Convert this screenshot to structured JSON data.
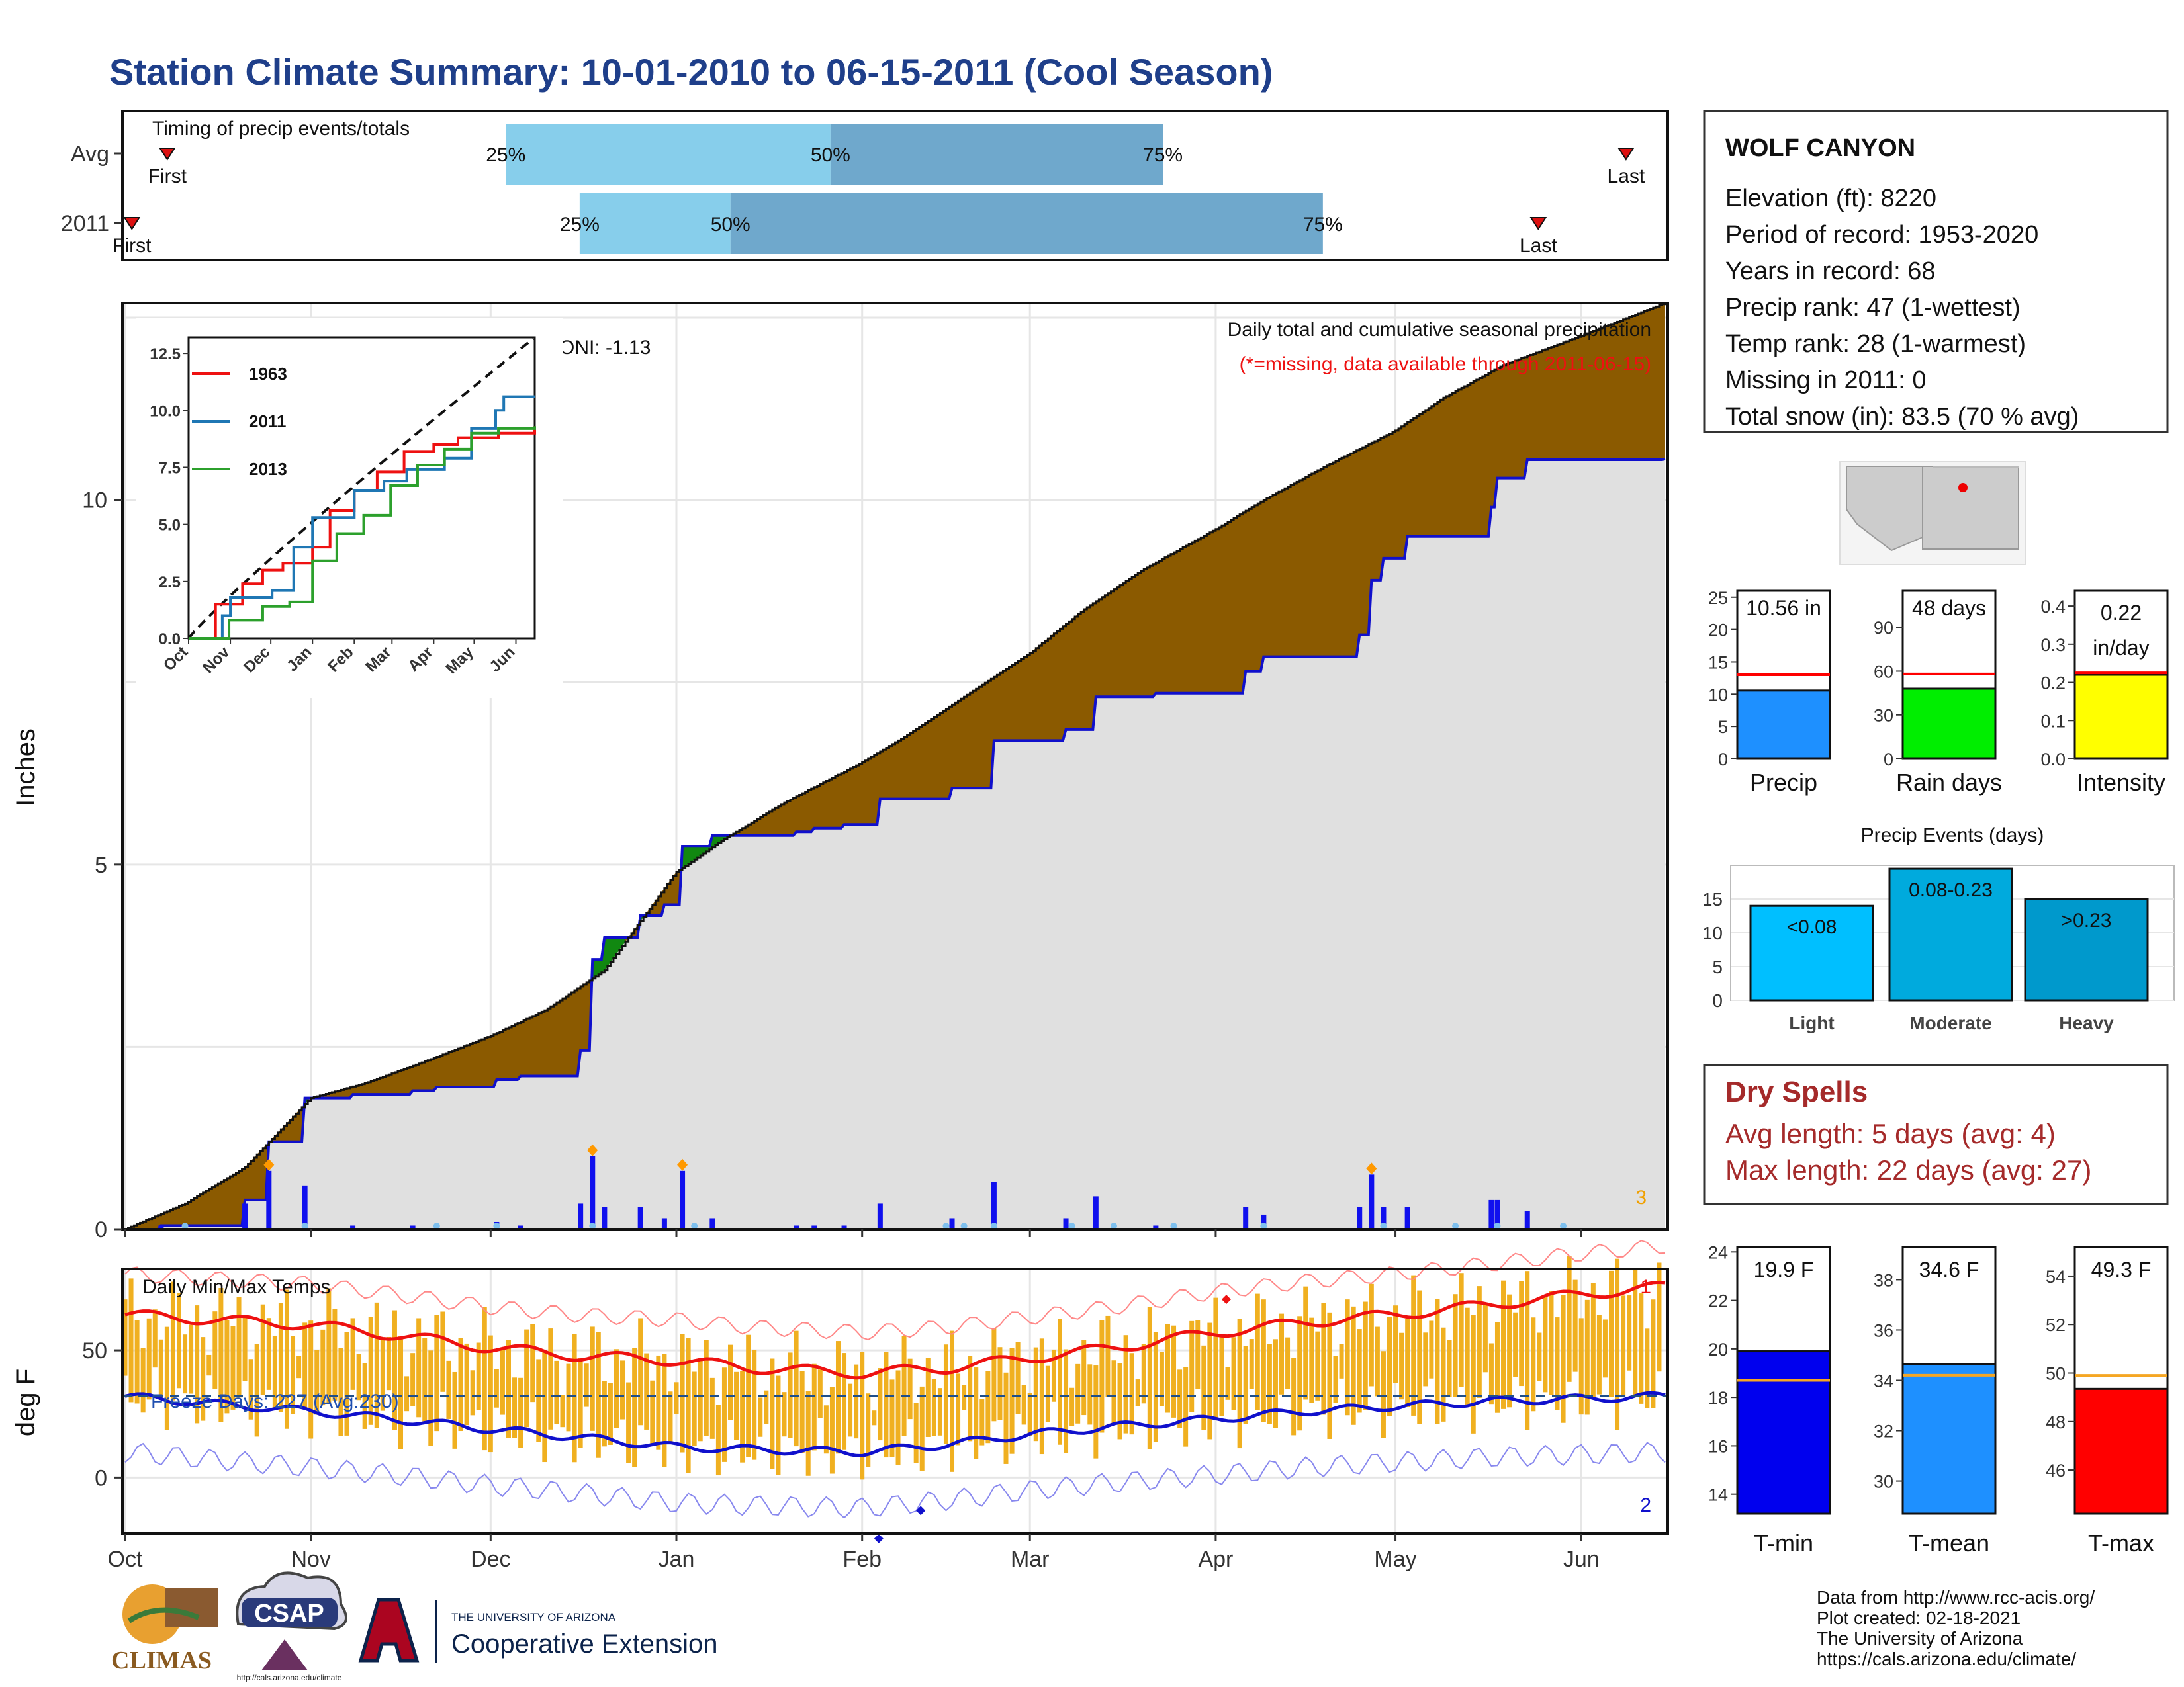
{
  "page": {
    "title": "Station Climate Summary: 10-01-2010 to 06-15-2011 (Cool Season)",
    "colors": {
      "title": "#1f3f8a",
      "brown": "#8b5a00",
      "green": "#118811",
      "blue": "#1010cc",
      "lightblue": "#87ceeb",
      "midblue": "#6fa8cc",
      "orange": "#f0b020",
      "red": "#ee1111",
      "drygray": "#e0e0e0"
    }
  },
  "timing_panel": {
    "label": "Timing of precip events/totals",
    "rows": [
      {
        "name": "Avg",
        "first_label": "First",
        "last_label": "Last",
        "first_frac": 0.027,
        "last_frac": 0.975,
        "p25": 0.247,
        "p50": 0.458,
        "p75": 0.674,
        "p25_label": "25%",
        "p50_label": "50%",
        "p75_label": "75%"
      },
      {
        "name": "2011",
        "first_label": "First",
        "last_label": "Last",
        "first_frac": 0.004,
        "last_frac": 0.918,
        "p25": 0.295,
        "p50": 0.393,
        "p75": 0.778,
        "p25_label": "25%",
        "p50_label": "50%",
        "p75_label": "75%"
      }
    ]
  },
  "precip_panel": {
    "ylabel": "Inches",
    "top_label": "Daily total and cumulative seasonal precipitation",
    "missing_note": "(*=missing, data available through 2011-06-15)",
    "oni_label": "ONI: -1.13",
    "corner_count": "3",
    "month_ticks": [
      "Oct",
      "Nov",
      "Dec",
      "Jan",
      "Feb",
      "Mar",
      "Apr",
      "May",
      "Jun"
    ]
  },
  "inset": {
    "legend": [
      "1963",
      "2011",
      "2013"
    ],
    "ytick_labels": [
      "0.0",
      "2.5",
      "5.0",
      "7.5",
      "10.0",
      "12.5"
    ],
    "xtick_labels": [
      "Oct",
      "Nov",
      "Dec",
      "Jan",
      "Feb",
      "Mar",
      "Apr",
      "May",
      "Jun"
    ]
  },
  "temp_panel": {
    "label": "Daily Min/Max Temps",
    "ylabel": "deg F",
    "freeze_label": "Freeze Days: 227 (Avg:230)",
    "count_top": "1",
    "count_bottom": "2",
    "month_ticks": [
      "Oct",
      "Nov",
      "Dec",
      "Jan",
      "Feb",
      "Mar",
      "Apr",
      "May",
      "Jun"
    ]
  },
  "station_box": {
    "name": "WOLF CANYON",
    "lines": [
      "Elevation (ft): 8220",
      "Period of record: 1953-2020",
      "Years in record: 68",
      "Precip rank: 47 (1-wettest)",
      "Temp rank: 28 (1-warmest)",
      "Missing in 2011: 0",
      "Total snow (in): 83.5 (70 % avg)"
    ]
  },
  "mini_bars": [
    {
      "label": "Precip",
      "value_text": "10.56 in",
      "value": 10.56,
      "avg": 13,
      "ymax": 26,
      "ticks": [
        "0",
        "5",
        "10",
        "15",
        "20",
        "25"
      ],
      "tick_vals": [
        0,
        5,
        10,
        15,
        20,
        25
      ],
      "color": "#1e90ff"
    },
    {
      "label": "Rain days",
      "value_text": "48 days",
      "value": 48,
      "avg": 58,
      "ymax": 115,
      "ticks": [
        "0",
        "30",
        "60",
        "90"
      ],
      "tick_vals": [
        0,
        30,
        60,
        90
      ],
      "color": "#00ee00"
    },
    {
      "label": "Intensity",
      "value_text": "0.22 in/day",
      "value_line1": "0.22",
      "value_line2": "in/day",
      "value": 0.22,
      "avg": 0.225,
      "ymax": 0.44,
      "ticks": [
        "0.0",
        "0.1",
        "0.2",
        "0.3",
        "0.4"
      ],
      "tick_vals": [
        0,
        0.1,
        0.2,
        0.3,
        0.4
      ],
      "color": "#ffff00"
    }
  ],
  "events_chart": {
    "title": "Precip Events (days)",
    "categories": [
      "Light",
      "Moderate",
      "Heavy"
    ],
    "bar_labels": [
      "<0.08",
      "0.08-0.23",
      ">0.23"
    ],
    "values": [
      14,
      19.5,
      15
    ],
    "ticks": [
      "0",
      "5",
      "10",
      "15"
    ],
    "tick_vals": [
      0,
      5,
      10,
      15
    ],
    "ymax": 20,
    "colors": [
      "#00bfff",
      "#00aadd",
      "#0099cc"
    ]
  },
  "dry_spells": {
    "title": "Dry Spells",
    "avg_line": "Avg length: 5 days (avg: 4)",
    "max_line": "Max length: 22 days (avg: 27)"
  },
  "temp_bars": [
    {
      "label": "T-min",
      "value_text": "19.9 F",
      "value": 19.9,
      "avg": 18.7,
      "ymin": 13.2,
      "ymax": 24.2,
      "ticks": [
        "14",
        "16",
        "18",
        "20",
        "22",
        "24"
      ],
      "tick_vals": [
        14,
        16,
        18,
        20,
        22,
        24
      ],
      "color": "#0000ee"
    },
    {
      "label": "T-mean",
      "value_text": "34.6 F",
      "value": 34.65,
      "avg": 34.2,
      "ymin": 28.7,
      "ymax": 39.3,
      "ticks": [
        "30",
        "32",
        "34",
        "36",
        "38"
      ],
      "tick_vals": [
        30,
        32,
        34,
        36,
        38
      ],
      "color": "#1e90ff"
    },
    {
      "label": "T-max",
      "value_text": "49.3 F",
      "value": 49.35,
      "avg": 49.9,
      "ymin": 44.2,
      "ymax": 55.2,
      "ticks": [
        "46",
        "48",
        "50",
        "52",
        "54"
      ],
      "tick_vals": [
        46,
        48,
        50,
        52,
        54
      ],
      "color": "#ff0000"
    }
  ],
  "footer": {
    "lines": [
      "Data from http://www.rcc-acis.org/",
      "Plot created: 02-18-2021",
      "The University of Arizona",
      "https://cals.arizona.edu/climate/"
    ],
    "climas_logo": "CLIMAS",
    "csap_logo": "CSAP",
    "csap_url": "http://cals.arizona.edu/climate",
    "ua_small": "THE UNIVERSITY OF ARIZONA",
    "ua_large": "Cooperative Extension"
  },
  "chart_data": [
    {
      "type": "area",
      "title": "Daily total and cumulative seasonal precipitation",
      "xlabel": "",
      "ylabel": "Inches",
      "ylim": [
        0,
        12.5
      ],
      "x_ticks": [
        "Oct",
        "Nov",
        "Dec",
        "Jan",
        "Feb",
        "Mar",
        "Apr",
        "May",
        "Jun"
      ],
      "x_month_start_days": [
        0,
        31,
        61,
        92,
        123,
        151,
        182,
        212,
        243
      ],
      "x_max_day": 257,
      "series": [
        {
          "x_days": [
            0,
            10,
            20,
            31,
            40,
            50,
            61,
            70,
            80,
            92,
            100,
            110,
            123,
            130,
            140,
            151,
            160,
            170,
            182,
            190,
            200,
            212,
            220,
            230,
            243,
            257
          ],
          "values": [
            0,
            0.35,
            0.85,
            1.8,
            2.0,
            2.3,
            2.65,
            3.0,
            3.55,
            4.9,
            5.35,
            5.85,
            6.4,
            6.75,
            7.3,
            7.9,
            8.5,
            9.05,
            9.6,
            10.0,
            10.45,
            10.95,
            11.4,
            11.85,
            12.25,
            12.7
          ]
        },
        {
          "x_days": [
            0,
            6,
            18,
            20,
            24,
            30,
            33,
            38,
            48,
            52,
            62,
            66,
            74,
            76,
            78,
            80,
            86,
            90,
            93,
            98,
            112,
            115,
            120,
            126,
            138,
            145,
            157,
            162,
            172,
            187,
            190,
            206,
            208,
            210,
            214,
            228,
            229,
            234,
            257
          ],
          "values": [
            0,
            0.05,
            0.05,
            0.4,
            1.2,
            1.8,
            1.8,
            1.85,
            1.9,
            1.95,
            2.05,
            2.1,
            2.1,
            2.45,
            3.7,
            4.0,
            4.3,
            4.45,
            5.25,
            5.4,
            5.45,
            5.5,
            5.55,
            5.9,
            6.05,
            6.7,
            6.85,
            7.3,
            7.35,
            7.65,
            7.85,
            8.15,
            8.9,
            9.2,
            9.5,
            9.9,
            10.3,
            10.55,
            10.56
          ]
        }
      ]
    },
    {
      "type": "bar",
      "title": "Precip Events (days)",
      "categories": [
        "Light",
        "Moderate",
        "Heavy"
      ],
      "values": [
        14,
        19.5,
        15
      ],
      "ylim": [
        0,
        20
      ]
    },
    {
      "type": "line",
      "title": "Daily Min/Max Temps",
      "ylabel": "deg F",
      "ylim": [
        -22,
        82
      ],
      "x_days": [
        0,
        15,
        31,
        45,
        61,
        75,
        92,
        105,
        123,
        137,
        151,
        165,
        182,
        197,
        212,
        228,
        243,
        257
      ],
      "series": [
        {
          "values": [
            64,
            62,
            60,
            56,
            51,
            48,
            46,
            43,
            41,
            43,
            47,
            51,
            57,
            61,
            64,
            68,
            72,
            75
          ]
        },
        {
          "values": [
            32,
            29,
            26,
            23,
            19,
            16,
            12,
            11,
            10,
            13,
            17,
            20,
            23,
            26,
            28,
            30,
            31,
            32
          ]
        }
      ]
    }
  ]
}
